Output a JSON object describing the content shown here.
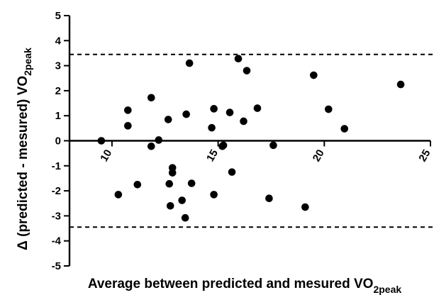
{
  "chart_data": {
    "type": "scatter",
    "xlabel": "Average between predicted and mesured VO",
    "xlabel_sub": "2peak",
    "ylabel_prefix": "Δ (predicted - mesured) VO",
    "ylabel_sub": "2peak",
    "xlim": [
      8,
      25
    ],
    "ylim": [
      -5,
      5
    ],
    "x_ticks": [
      10,
      15,
      20,
      25
    ],
    "x_tick_labels": [
      "10",
      "15",
      "20",
      "25"
    ],
    "y_ticks": [
      -5,
      -4,
      -3,
      -2,
      -1,
      0,
      1,
      2,
      3,
      4,
      5
    ],
    "y_tick_labels": [
      "-5",
      "-4",
      "-3",
      "-2",
      "-1",
      "0",
      "1",
      "2",
      "3",
      "4",
      "5"
    ],
    "reference_lines": [
      {
        "y": 3.45,
        "style": "dashed"
      },
      {
        "y": -3.45,
        "style": "dashed"
      }
    ],
    "zero_line": 0,
    "grid": false,
    "points": [
      {
        "x": 9.5,
        "y": 0.0
      },
      {
        "x": 10.3,
        "y": -2.15
      },
      {
        "x": 10.75,
        "y": 1.22
      },
      {
        "x": 10.75,
        "y": 0.6
      },
      {
        "x": 11.2,
        "y": -1.75
      },
      {
        "x": 11.85,
        "y": 1.72
      },
      {
        "x": 11.85,
        "y": -0.22
      },
      {
        "x": 12.2,
        "y": 0.03
      },
      {
        "x": 12.65,
        "y": 0.85
      },
      {
        "x": 12.7,
        "y": -1.72
      },
      {
        "x": 12.75,
        "y": -2.6
      },
      {
        "x": 12.85,
        "y": -1.28
      },
      {
        "x": 12.85,
        "y": -1.08
      },
      {
        "x": 13.3,
        "y": -2.38
      },
      {
        "x": 13.45,
        "y": -3.08
      },
      {
        "x": 13.5,
        "y": 1.06
      },
      {
        "x": 13.65,
        "y": 3.1
      },
      {
        "x": 13.75,
        "y": -1.7
      },
      {
        "x": 14.7,
        "y": 0.52
      },
      {
        "x": 14.8,
        "y": 1.28
      },
      {
        "x": 14.8,
        "y": -2.15
      },
      {
        "x": 15.2,
        "y": -0.22
      },
      {
        "x": 15.25,
        "y": -0.18
      },
      {
        "x": 15.55,
        "y": 1.13
      },
      {
        "x": 15.65,
        "y": -1.25
      },
      {
        "x": 15.95,
        "y": 3.28
      },
      {
        "x": 16.2,
        "y": 0.78
      },
      {
        "x": 16.35,
        "y": 2.8
      },
      {
        "x": 16.85,
        "y": 1.3
      },
      {
        "x": 17.4,
        "y": -2.3
      },
      {
        "x": 17.6,
        "y": -0.18
      },
      {
        "x": 19.1,
        "y": -2.65
      },
      {
        "x": 19.5,
        "y": 2.62
      },
      {
        "x": 20.2,
        "y": 1.26
      },
      {
        "x": 20.95,
        "y": 0.48
      },
      {
        "x": 23.6,
        "y": 2.25
      }
    ]
  }
}
